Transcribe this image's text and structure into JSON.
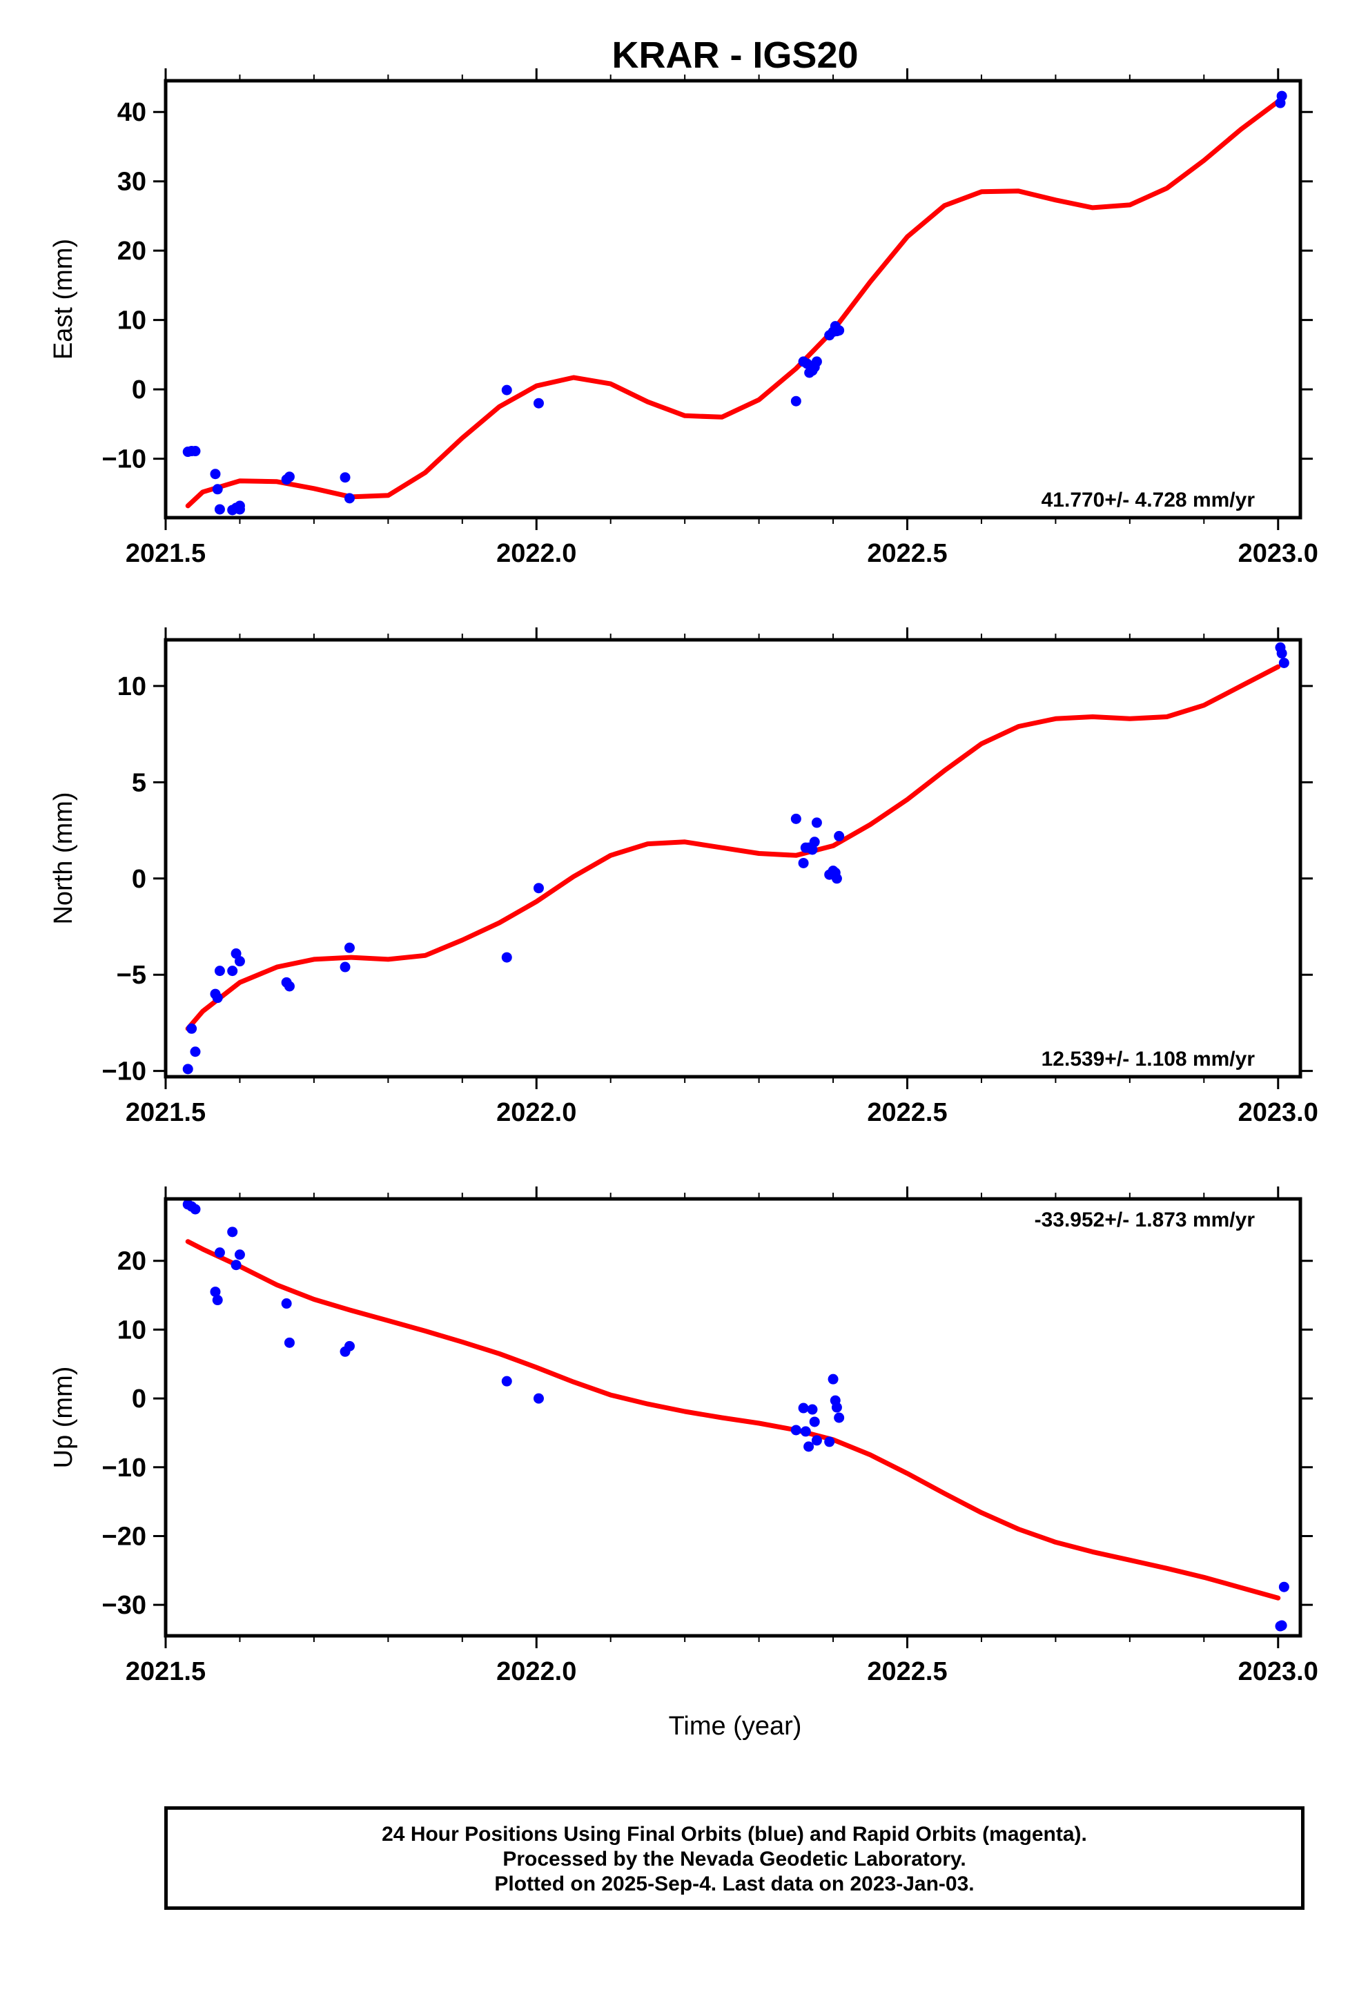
{
  "figure": {
    "title": "KRAR - IGS20",
    "xlabel": "Time (year)"
  },
  "colors": {
    "final_orbits": "#0000ff",
    "model": "#ff0000",
    "frame": "#000000"
  },
  "chart_data": [
    {
      "type": "scatter",
      "component": "East",
      "ylabel": "East (mm)",
      "xlim": [
        2021.5,
        2023.03
      ],
      "ylim": [
        -18.5,
        44.5
      ],
      "xticks": [
        2021.5,
        2022.0,
        2022.5,
        2023.0
      ],
      "xtick_labels": [
        "2021.5",
        "2022.0",
        "2022.5",
        "2023.0"
      ],
      "yticks": [
        -10,
        0,
        10,
        20,
        30,
        40
      ],
      "ytick_labels": [
        "−10",
        "0",
        "10",
        "20",
        "30",
        "40"
      ],
      "rate_text": "41.770+/- 4.728 mm/yr",
      "rate_position": "bottom-right",
      "series": [
        {
          "kind": "points",
          "color": "#0000ff",
          "x": [
            2021.53,
            2021.535,
            2021.54,
            2021.567,
            2021.57,
            2021.573,
            2021.59,
            2021.595,
            2021.6,
            2021.6,
            2021.663,
            2021.667,
            2021.742,
            2021.748,
            2021.96,
            2022.003,
            2022.35,
            2022.36,
            2022.365,
            2022.368,
            2022.372,
            2022.375,
            2022.378,
            2022.395,
            2022.4,
            2022.403,
            2022.405,
            2022.408,
            2023.003,
            2023.005
          ],
          "y": [
            -9.0,
            -8.9,
            -8.9,
            -12.2,
            -14.4,
            -17.3,
            -17.4,
            -17.1,
            -16.8,
            -17.3,
            -13.0,
            -12.6,
            -12.7,
            -15.7,
            -0.1,
            -2.0,
            -1.7,
            4.0,
            3.7,
            2.4,
            2.7,
            3.2,
            4.0,
            7.8,
            8.3,
            9.1,
            8.4,
            8.5,
            41.3,
            42.3
          ]
        },
        {
          "kind": "line",
          "color": "#ff0000",
          "x": [
            2021.53,
            2021.55,
            2021.6,
            2021.65,
            2021.7,
            2021.75,
            2021.8,
            2021.85,
            2021.9,
            2021.95,
            2022.0,
            2022.05,
            2022.1,
            2022.15,
            2022.2,
            2022.25,
            2022.3,
            2022.35,
            2022.4,
            2022.45,
            2022.5,
            2022.55,
            2022.6,
            2022.65,
            2022.7,
            2022.75,
            2022.8,
            2022.85,
            2022.9,
            2022.95,
            2023.0
          ],
          "y": [
            -16.8,
            -14.8,
            -13.2,
            -13.3,
            -14.3,
            -15.5,
            -15.3,
            -12.0,
            -7.0,
            -2.5,
            0.5,
            1.7,
            0.8,
            -1.8,
            -3.8,
            -4.0,
            -1.5,
            3.0,
            8.5,
            15.5,
            22.0,
            26.5,
            28.5,
            28.6,
            27.3,
            26.2,
            26.6,
            29.0,
            33.0,
            37.5,
            41.5
          ]
        }
      ]
    },
    {
      "type": "scatter",
      "component": "North",
      "ylabel": "North (mm)",
      "xlim": [
        2021.5,
        2023.03
      ],
      "ylim": [
        -10.3,
        12.4
      ],
      "xticks": [
        2021.5,
        2022.0,
        2022.5,
        2023.0
      ],
      "xtick_labels": [
        "2021.5",
        "2022.0",
        "2022.5",
        "2023.0"
      ],
      "yticks": [
        -10,
        -5,
        0,
        5,
        10
      ],
      "ytick_labels": [
        "−10",
        "−5",
        "0",
        "5",
        "10"
      ],
      "rate_text": "12.539+/- 1.108 mm/yr",
      "rate_position": "bottom-right",
      "series": [
        {
          "kind": "points",
          "color": "#0000ff",
          "x": [
            2021.53,
            2021.535,
            2021.54,
            2021.567,
            2021.57,
            2021.573,
            2021.59,
            2021.595,
            2021.6,
            2021.663,
            2021.667,
            2021.742,
            2021.748,
            2021.96,
            2022.003,
            2022.35,
            2022.36,
            2022.363,
            2022.367,
            2022.372,
            2022.375,
            2022.378,
            2022.395,
            2022.4,
            2022.403,
            2022.405,
            2022.408,
            2023.003,
            2023.005,
            2023.008
          ],
          "y": [
            -9.9,
            -7.8,
            -9.0,
            -6.0,
            -6.2,
            -4.8,
            -4.8,
            -3.9,
            -4.3,
            -5.4,
            -5.6,
            -4.6,
            -3.6,
            -4.1,
            -0.5,
            3.1,
            0.8,
            1.6,
            1.6,
            1.5,
            1.9,
            2.9,
            0.2,
            0.4,
            0.3,
            0.0,
            2.2,
            12.0,
            11.7,
            11.2
          ]
        },
        {
          "kind": "line",
          "color": "#ff0000",
          "x": [
            2021.53,
            2021.55,
            2021.6,
            2021.65,
            2021.7,
            2021.75,
            2021.8,
            2021.85,
            2021.9,
            2021.95,
            2022.0,
            2022.05,
            2022.1,
            2022.15,
            2022.2,
            2022.25,
            2022.3,
            2022.35,
            2022.4,
            2022.45,
            2022.5,
            2022.55,
            2022.6,
            2022.65,
            2022.7,
            2022.75,
            2022.8,
            2022.85,
            2022.9,
            2022.95,
            2023.0
          ],
          "y": [
            -7.8,
            -6.9,
            -5.4,
            -4.6,
            -4.2,
            -4.1,
            -4.2,
            -4.0,
            -3.2,
            -2.3,
            -1.2,
            0.1,
            1.2,
            1.8,
            1.9,
            1.6,
            1.3,
            1.2,
            1.7,
            2.8,
            4.1,
            5.6,
            7.0,
            7.9,
            8.3,
            8.4,
            8.3,
            8.4,
            9.0,
            10.0,
            11.0
          ]
        }
      ]
    },
    {
      "type": "scatter",
      "component": "Up",
      "ylabel": "Up (mm)",
      "xlim": [
        2021.5,
        2023.03
      ],
      "ylim": [
        -34.5,
        29.0
      ],
      "xticks": [
        2021.5,
        2022.0,
        2022.5,
        2023.0
      ],
      "xtick_labels": [
        "2021.5",
        "2022.0",
        "2022.5",
        "2023.0"
      ],
      "yticks": [
        -30,
        -20,
        -10,
        0,
        10,
        20
      ],
      "ytick_labels": [
        "−30",
        "−20",
        "−10",
        "0",
        "10",
        "20"
      ],
      "rate_text": "-33.952+/- 1.873 mm/yr",
      "rate_position": "top-right",
      "series": [
        {
          "kind": "points",
          "color": "#0000ff",
          "x": [
            2021.53,
            2021.535,
            2021.54,
            2021.567,
            2021.57,
            2021.573,
            2021.59,
            2021.595,
            2021.6,
            2021.663,
            2021.667,
            2021.742,
            2021.748,
            2021.96,
            2022.003,
            2022.35,
            2022.36,
            2022.363,
            2022.367,
            2022.372,
            2022.375,
            2022.378,
            2022.395,
            2022.4,
            2022.403,
            2022.405,
            2022.408,
            2023.003,
            2023.005,
            2023.008
          ],
          "y": [
            28.2,
            27.9,
            27.5,
            15.5,
            14.3,
            21.2,
            24.2,
            19.4,
            20.9,
            13.8,
            8.1,
            6.8,
            7.6,
            2.5,
            0.0,
            -4.6,
            -1.4,
            -4.8,
            -7.0,
            -1.6,
            -3.4,
            -6.1,
            -6.3,
            2.8,
            -0.3,
            -1.3,
            -2.8,
            -33.1,
            -33.0,
            -27.4
          ]
        },
        {
          "kind": "line",
          "color": "#ff0000",
          "x": [
            2021.53,
            2021.55,
            2021.6,
            2021.65,
            2021.7,
            2021.75,
            2021.8,
            2021.85,
            2021.9,
            2021.95,
            2022.0,
            2022.05,
            2022.1,
            2022.15,
            2022.2,
            2022.25,
            2022.3,
            2022.35,
            2022.4,
            2022.45,
            2022.5,
            2022.55,
            2022.6,
            2022.65,
            2022.7,
            2022.75,
            2022.8,
            2022.85,
            2022.9,
            2022.95,
            2023.0
          ],
          "y": [
            22.8,
            21.7,
            19.2,
            16.5,
            14.4,
            12.8,
            11.3,
            9.8,
            8.2,
            6.5,
            4.5,
            2.4,
            0.5,
            -0.8,
            -1.9,
            -2.8,
            -3.6,
            -4.6,
            -6.0,
            -8.2,
            -10.9,
            -13.8,
            -16.6,
            -19.0,
            -20.9,
            -22.3,
            -23.5,
            -24.7,
            -26.0,
            -27.5,
            -29.0
          ]
        }
      ]
    }
  ],
  "footer": {
    "lines": [
      "24 Hour Positions Using Final Orbits (blue) and Rapid Orbits (magenta).",
      "Processed by the Nevada Geodetic Laboratory.",
      "Plotted on 2025-Sep-4. Last data on 2023-Jan-03."
    ]
  }
}
